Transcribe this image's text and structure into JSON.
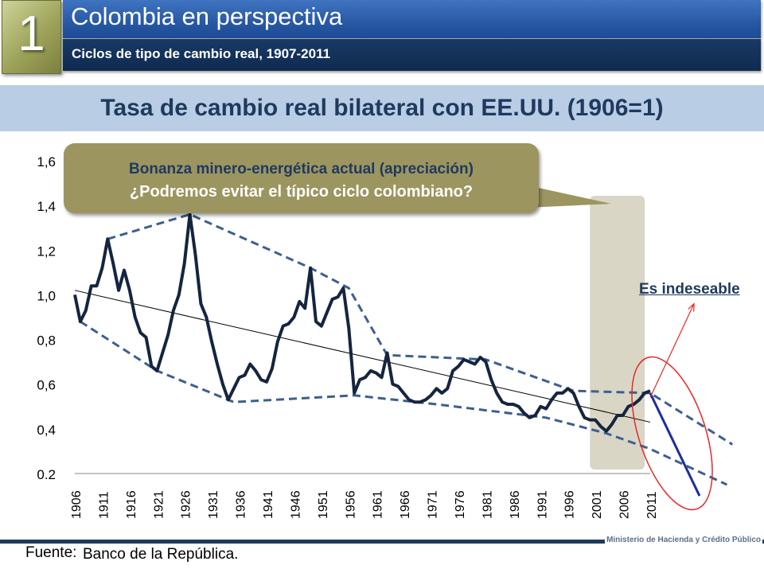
{
  "header": {
    "section_number": "1",
    "title": "Colombia en perspectiva",
    "subtitle": "Ciclos de tipo de cambio real, 1907-2011"
  },
  "chart_title": "Tasa de cambio real bilateral con EE.UU. (1906=1)",
  "callout": {
    "line1": "Bonanza minero-energética actual (apreciación)",
    "line2": "¿Podremos evitar el típico ciclo colombiano?"
  },
  "annotation": "Es indeseable",
  "footer": {
    "source_label": "Fuente:",
    "source_text": "Banco de la República.",
    "ministry": "Ministerio de Hacienda y Crédito Público"
  },
  "colors": {
    "series": "#15253f",
    "envelope": "#3c5f8f",
    "projection": "#1e2e9a",
    "highlight_band": "#d9d6c5",
    "ellipse": "#e02a2a",
    "callout": "#9c9560"
  },
  "chart_data": {
    "type": "line",
    "title": "Tasa de cambio real bilateral con EE.UU. (1906=1)",
    "xlim": [
      1906,
      2011
    ],
    "ylim": [
      0.2,
      1.6
    ],
    "y_ticks": [
      {
        "value": 1.6,
        "label": "1,6"
      },
      {
        "value": 1.4,
        "label": "1,4"
      },
      {
        "value": 1.2,
        "label": "1,2"
      },
      {
        "value": 1.0,
        "label": "1,0"
      },
      {
        "value": 0.8,
        "label": "0,8"
      },
      {
        "value": 0.6,
        "label": "0,6"
      },
      {
        "value": 0.4,
        "label": "0,4"
      },
      {
        "value": 0.2,
        "label": "0.2"
      }
    ],
    "x_tick_labels": [
      "1906",
      "1911",
      "1916",
      "1921",
      "1926",
      "1931",
      "1936",
      "1941",
      "1946",
      "1951",
      "1956",
      "1961",
      "1966",
      "1971",
      "1976",
      "1981",
      "1986",
      "1991",
      "1996",
      "2001",
      "2006",
      "2011"
    ],
    "series": [
      {
        "x": [
          1906,
          1907,
          1908,
          1909,
          1910,
          1911,
          1912,
          1913,
          1914,
          1915,
          1916,
          1917,
          1918,
          1919,
          1920,
          1921,
          1922,
          1923,
          1924,
          1925,
          1926,
          1927,
          1928,
          1929,
          1930,
          1931,
          1932,
          1933,
          1934,
          1935,
          1936,
          1937,
          1938,
          1939,
          1940,
          1941,
          1942,
          1943,
          1944,
          1945,
          1946,
          1947,
          1948,
          1949,
          1950,
          1951,
          1952,
          1953,
          1954,
          1955,
          1956,
          1957,
          1958,
          1959,
          1960,
          1961,
          1962,
          1963,
          1964,
          1965,
          1966,
          1967,
          1968,
          1969,
          1970,
          1971,
          1972,
          1973,
          1974,
          1975,
          1976,
          1977,
          1978,
          1979,
          1980,
          1981,
          1982,
          1983,
          1984,
          1985,
          1986,
          1987,
          1988,
          1989,
          1990,
          1991,
          1992,
          1993,
          1994,
          1995,
          1996,
          1997,
          1998,
          1999,
          2000,
          2001,
          2002,
          2003,
          2004,
          2005,
          2006,
          2007,
          2008,
          2009,
          2010,
          2011
        ],
        "y": [
          1.0,
          0.88,
          0.93,
          1.04,
          1.04,
          1.12,
          1.25,
          1.14,
          1.02,
          1.11,
          1.02,
          0.9,
          0.83,
          0.81,
          0.68,
          0.66,
          0.74,
          0.82,
          0.93,
          1.0,
          1.14,
          1.36,
          1.18,
          0.96,
          0.9,
          0.79,
          0.69,
          0.6,
          0.53,
          0.58,
          0.63,
          0.64,
          0.69,
          0.66,
          0.62,
          0.61,
          0.67,
          0.79,
          0.86,
          0.87,
          0.9,
          0.97,
          0.94,
          1.12,
          0.88,
          0.86,
          0.92,
          0.98,
          0.99,
          1.03,
          0.85,
          0.56,
          0.62,
          0.63,
          0.66,
          0.65,
          0.63,
          0.74,
          0.6,
          0.59,
          0.56,
          0.53,
          0.52,
          0.52,
          0.53,
          0.55,
          0.58,
          0.56,
          0.58,
          0.66,
          0.68,
          0.71,
          0.7,
          0.69,
          0.72,
          0.7,
          0.62,
          0.56,
          0.52,
          0.51,
          0.51,
          0.5,
          0.47,
          0.45,
          0.46,
          0.5,
          0.49,
          0.53,
          0.56,
          0.56,
          0.58,
          0.56,
          0.5,
          0.45,
          0.44,
          0.44,
          0.41,
          0.39,
          0.42,
          0.46,
          0.46,
          0.5,
          0.51,
          0.53,
          0.56,
          0.57
        ]
      }
    ],
    "trend_line": {
      "x": [
        1906,
        2011
      ],
      "y": [
        1.02,
        0.43
      ]
    },
    "envelopes": [
      {
        "x": [
          1912,
          1927,
          1949,
          1956,
          1963,
          1981,
          1997,
          2011,
          2026
        ],
        "y": [
          1.25,
          1.36,
          1.12,
          1.03,
          0.73,
          0.71,
          0.57,
          0.56,
          0.33
        ]
      },
      {
        "x": [
          1907,
          1921,
          1935,
          1957,
          1972,
          1992,
          2003,
          2011,
          2025
        ],
        "y": [
          0.88,
          0.66,
          0.52,
          0.55,
          0.51,
          0.45,
          0.38,
          0.31,
          0.15
        ]
      }
    ],
    "projection": {
      "x": [
        2011,
        2020
      ],
      "y": [
        0.56,
        0.1
      ]
    },
    "arrow": {
      "x": [
        2011,
        2019
      ],
      "y": [
        0.54,
        0.96
      ]
    },
    "highlight_band": {
      "x": [
        2000,
        2010
      ]
    },
    "ellipse_center": {
      "x": 2015,
      "y": 0.38
    }
  }
}
